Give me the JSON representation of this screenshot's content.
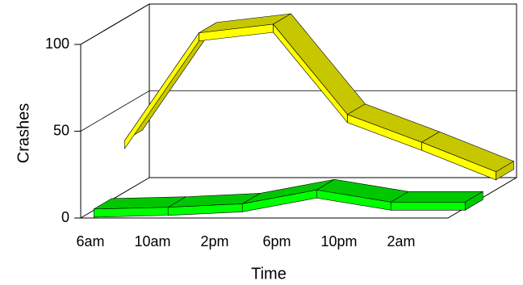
{
  "chart_data": {
    "type": "line3d",
    "x_label": "Time",
    "y_label": "Crashes",
    "categories": [
      "6am",
      "10am",
      "2pm",
      "6pm",
      "10pm",
      "2am"
    ],
    "ylim": [
      0,
      100
    ],
    "yticks": [
      0,
      50,
      100
    ],
    "grid": true,
    "series": [
      {
        "color": "#ffff00",
        "values": [
          33,
          95,
          100,
          48,
          32,
          15
        ]
      },
      {
        "color": "#00ff00",
        "values": [
          4,
          5,
          7,
          15,
          8,
          8
        ]
      }
    ]
  }
}
